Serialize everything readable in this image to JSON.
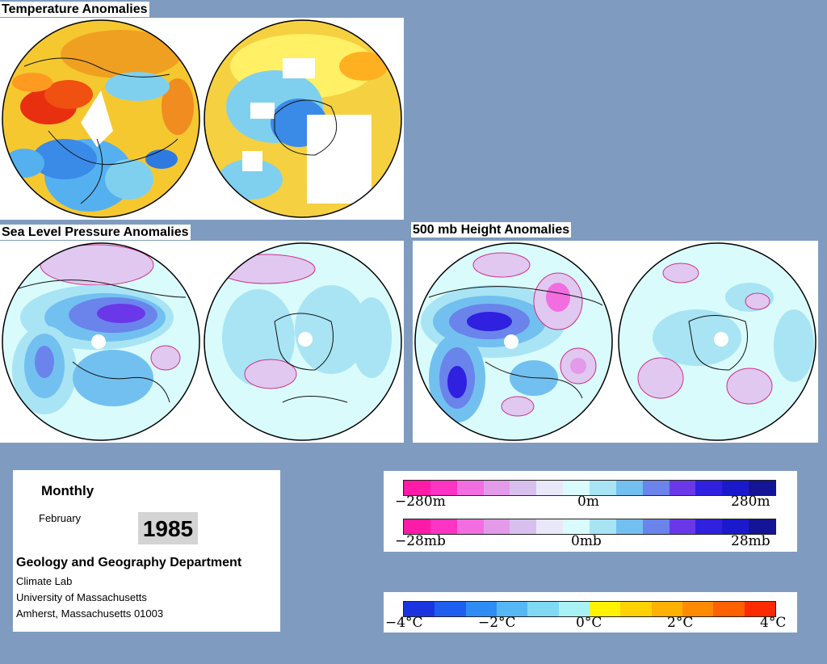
{
  "sections": {
    "temperature_title": "Temperature Anomalies",
    "slp_title": "Sea Level Pressure Anomalies",
    "height_title": "500 mb Height Anomalies"
  },
  "info": {
    "period": "Monthly",
    "month": "February",
    "year": "1985",
    "department": "Geology and Geography Department",
    "lab": "Climate Lab",
    "university": "University of Massachusetts",
    "address": "Amherst, Massachusetts 01003"
  },
  "legends": {
    "height": {
      "min": "−280m",
      "mid": "0m",
      "max": "280m"
    },
    "pressure": {
      "min": "−28mb",
      "mid": "0mb",
      "max": "28mb"
    },
    "temperature": {
      "t1": "−4°C",
      "t2": "−2°C",
      "t3": "0°C",
      "t4": "2°C",
      "t5": "4°C"
    }
  },
  "colors": {
    "background": "#7f9cc0",
    "pressure_scale": [
      "#ff1aa8",
      "#ff33c4",
      "#f26ee0",
      "#e39ae9",
      "#d8c0ee",
      "#e8e8f8",
      "#d9fbfb",
      "#a8e4f4",
      "#72c0f0",
      "#6a84ec",
      "#6a38e8",
      "#3020e0",
      "#1a1acc",
      "#141496"
    ],
    "temp_scale": [
      "#1a35e0",
      "#1e5ff0",
      "#2f8cf5",
      "#55b8f5",
      "#7fd9f5",
      "#a8f2f5",
      "#fff200",
      "#ffd200",
      "#ffb000",
      "#ff8a00",
      "#ff6000",
      "#ff2a00"
    ]
  }
}
